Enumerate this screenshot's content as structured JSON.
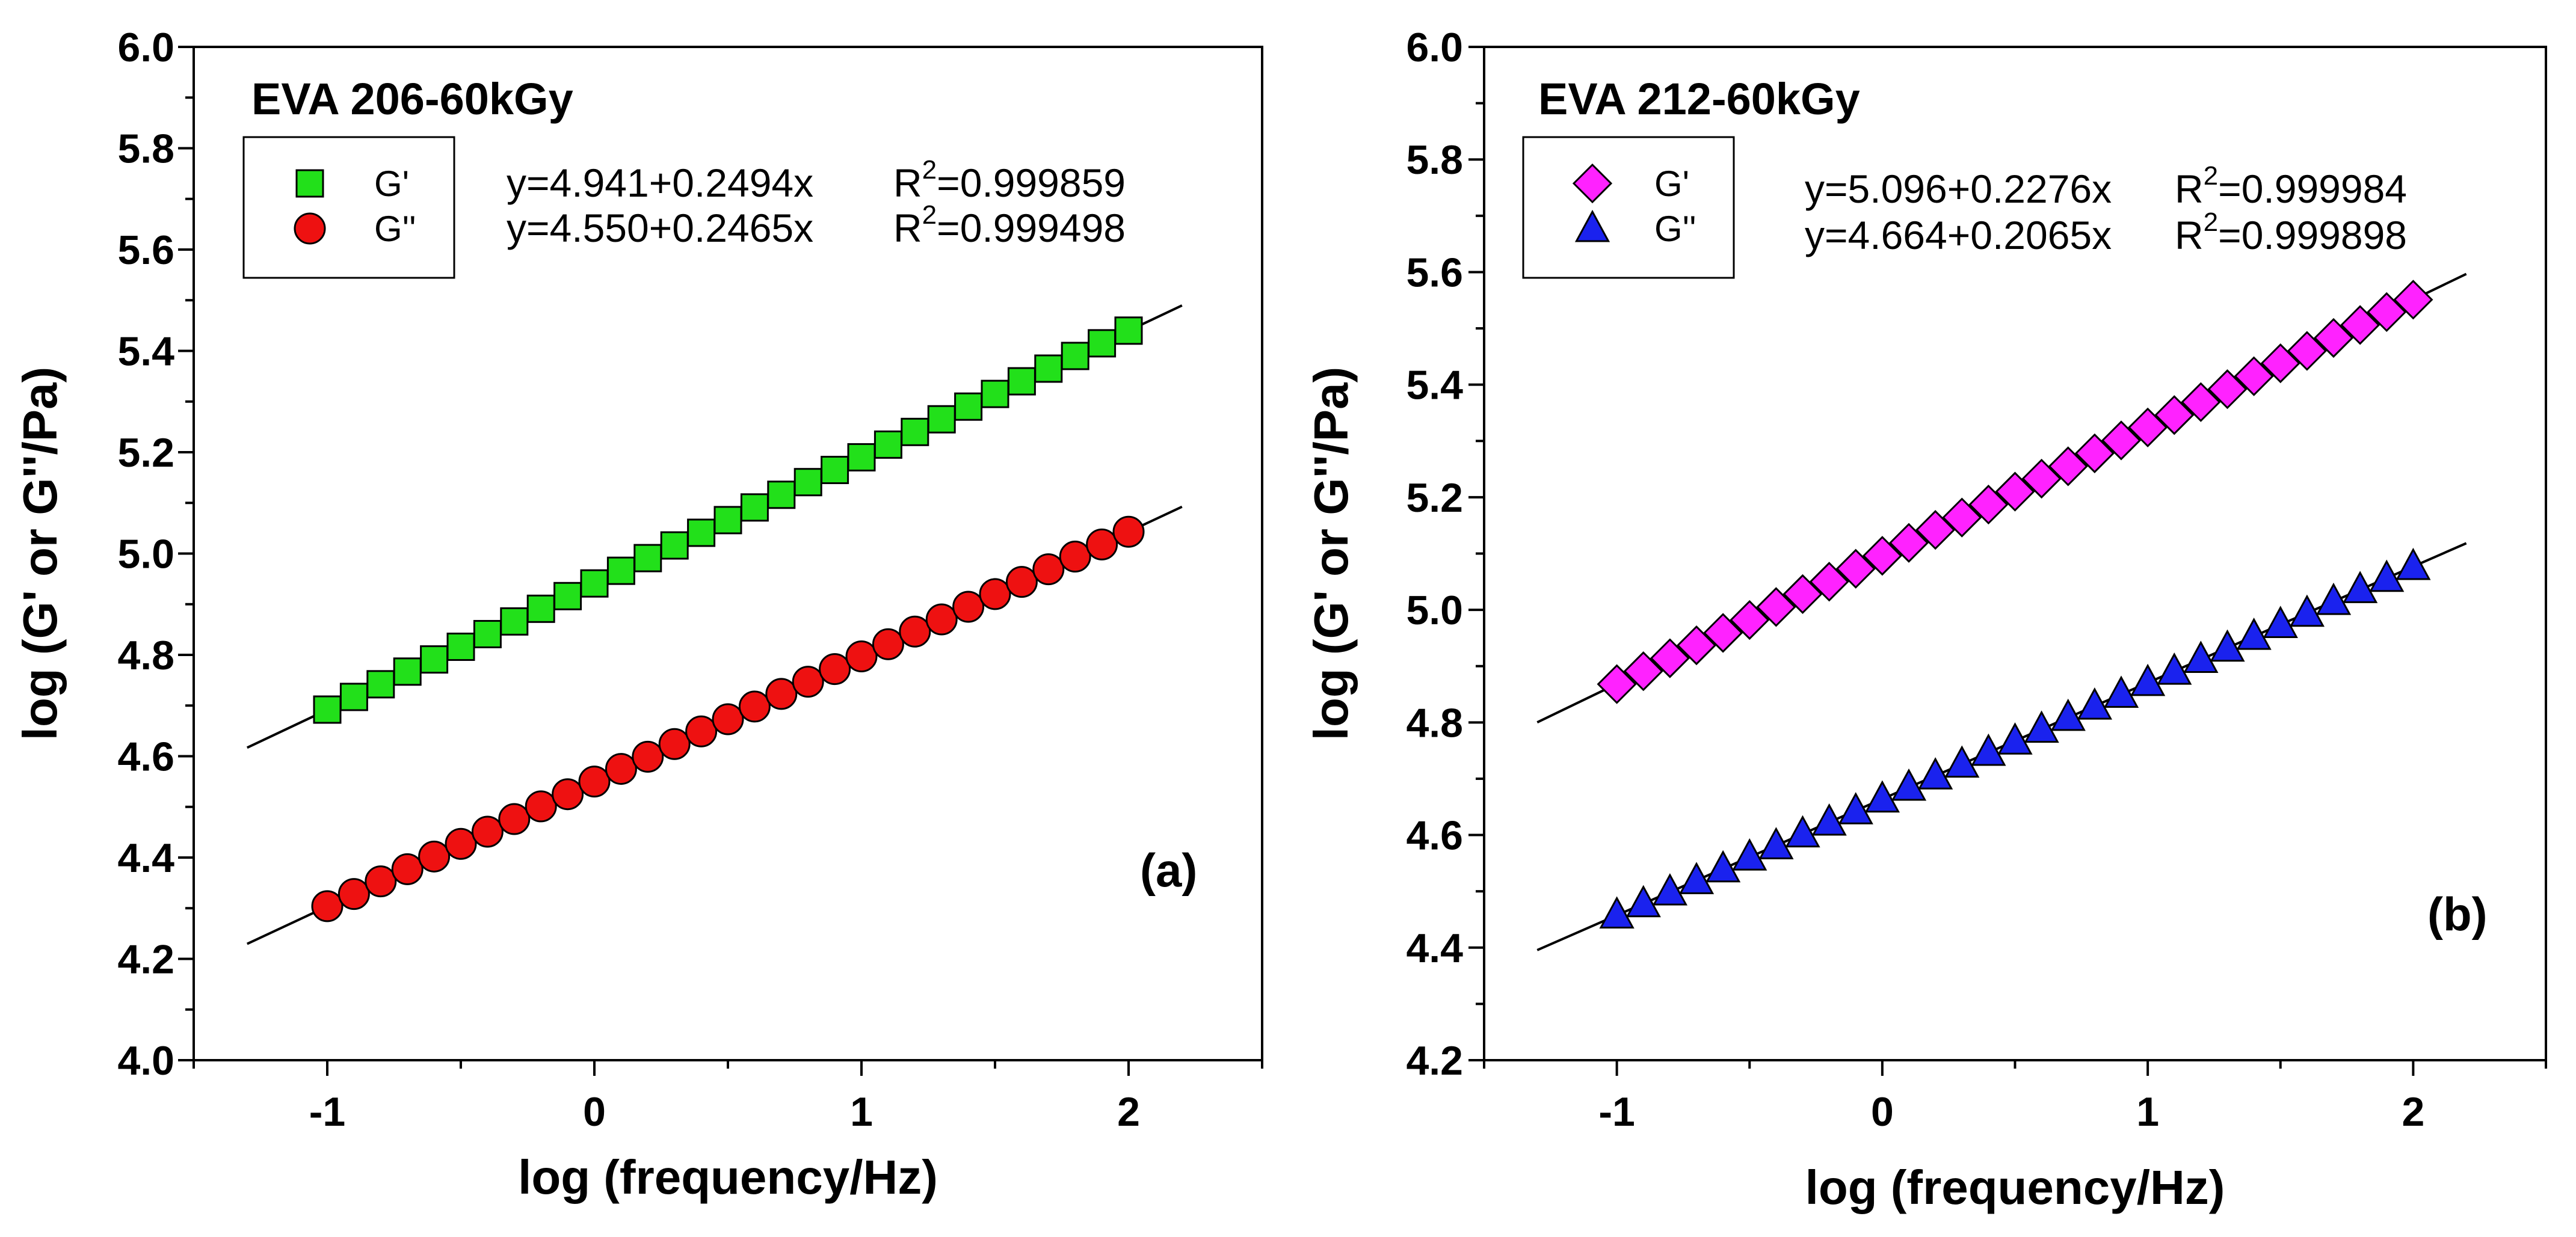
{
  "chart_data": [
    {
      "type": "scatter",
      "title": "EVA 206-60kGy",
      "panel_label": "(a)",
      "xlabel": "log (frequency/Hz)",
      "ylabel": "log (G' or G''/Pa)",
      "xlim": [
        -1.5,
        2.5
      ],
      "ylim": [
        4.0,
        6.0
      ],
      "xticks": [
        -1,
        0,
        1,
        2
      ],
      "xtick_labels": [
        "-1",
        "0",
        "1",
        "2"
      ],
      "yticks": [
        4.0,
        4.2,
        4.4,
        4.6,
        4.8,
        5.0,
        5.2,
        5.4,
        5.6,
        5.8,
        6.0
      ],
      "ytick_labels": [
        "4.0",
        "4.2",
        "4.4",
        "4.6",
        "4.8",
        "5.0",
        "5.2",
        "5.4",
        "5.6",
        "5.8",
        "6.0"
      ],
      "grid": false,
      "legend_position": "top-left",
      "x": [
        -1.0,
        -0.9,
        -0.8,
        -0.7,
        -0.6,
        -0.5,
        -0.4,
        -0.3,
        -0.2,
        -0.1,
        0.0,
        0.1,
        0.2,
        0.3,
        0.4,
        0.5,
        0.6,
        0.7,
        0.8,
        0.9,
        1.0,
        1.1,
        1.2,
        1.3,
        1.4,
        1.5,
        1.6,
        1.7,
        1.8,
        1.9,
        2.0
      ],
      "series": [
        {
          "name": "G'",
          "marker": "square",
          "color": "#22e01a",
          "values": [
            4.692,
            4.717,
            4.742,
            4.767,
            4.791,
            4.816,
            4.841,
            4.866,
            4.891,
            4.916,
            4.941,
            4.966,
            4.991,
            5.016,
            5.041,
            5.066,
            5.091,
            5.116,
            5.141,
            5.165,
            5.19,
            5.215,
            5.24,
            5.265,
            5.29,
            5.315,
            5.34,
            5.365,
            5.39,
            5.415,
            5.44
          ],
          "fit": {
            "intercept": 4.941,
            "slope": 0.2494,
            "x_range": [
              -1.3,
              2.2
            ]
          },
          "fit_label": "y=4.941+0.2494x",
          "r2_label": "0.999859"
        },
        {
          "name": "G''",
          "marker": "circle",
          "color": "#ee1111",
          "values": [
            4.304,
            4.328,
            4.353,
            4.377,
            4.402,
            4.427,
            4.451,
            4.476,
            4.501,
            4.525,
            4.55,
            4.575,
            4.599,
            4.624,
            4.649,
            4.673,
            4.698,
            4.723,
            4.747,
            4.772,
            4.797,
            4.821,
            4.846,
            4.87,
            4.895,
            4.92,
            4.944,
            4.969,
            4.994,
            5.018,
            5.043
          ],
          "fit": {
            "intercept": 4.55,
            "slope": 0.2465,
            "x_range": [
              -1.3,
              2.2
            ]
          },
          "fit_label": "y=4.550+0.2465x",
          "r2_label": "0.999498"
        }
      ]
    },
    {
      "type": "scatter",
      "title": "EVA 212-60kGy",
      "panel_label": "(b)",
      "xlabel": "log (frequency/Hz)",
      "ylabel": "log (G' or G''/Pa)",
      "xlim": [
        -1.5,
        2.5
      ],
      "ylim": [
        4.2,
        6.0
      ],
      "xticks": [
        -1,
        0,
        1,
        2
      ],
      "xtick_labels": [
        "-1",
        "0",
        "1",
        "2"
      ],
      "yticks": [
        4.2,
        4.4,
        4.6,
        4.8,
        5.0,
        5.2,
        5.4,
        5.6,
        5.8,
        6.0
      ],
      "ytick_labels": [
        "4.2",
        "4.4",
        "4.6",
        "4.8",
        "5.0",
        "5.2",
        "5.4",
        "5.6",
        "5.8",
        "6.0"
      ],
      "grid": false,
      "legend_position": "top-left",
      "x": [
        -1.0,
        -0.9,
        -0.8,
        -0.7,
        -0.6,
        -0.5,
        -0.4,
        -0.3,
        -0.2,
        -0.1,
        0.0,
        0.1,
        0.2,
        0.3,
        0.4,
        0.5,
        0.6,
        0.7,
        0.8,
        0.9,
        1.0,
        1.1,
        1.2,
        1.3,
        1.4,
        1.5,
        1.6,
        1.7,
        1.8,
        1.9,
        2.0
      ],
      "series": [
        {
          "name": "G'",
          "marker": "diamond",
          "color": "#ff22ff",
          "values": [
            4.868,
            4.891,
            4.914,
            4.937,
            4.959,
            4.982,
            5.005,
            5.028,
            5.05,
            5.073,
            5.096,
            5.119,
            5.142,
            5.164,
            5.187,
            5.21,
            5.233,
            5.255,
            5.278,
            5.301,
            5.324,
            5.346,
            5.369,
            5.392,
            5.415,
            5.438,
            5.46,
            5.483,
            5.506,
            5.529,
            5.551
          ],
          "fit": {
            "intercept": 5.096,
            "slope": 0.2276,
            "x_range": [
              -1.3,
              2.2
            ]
          },
          "fit_label": "y=5.096+0.2276x",
          "r2_label": "0.999984"
        },
        {
          "name": "G''",
          "marker": "triangle",
          "color": "#1a22ee",
          "values": [
            4.458,
            4.478,
            4.499,
            4.519,
            4.54,
            4.561,
            4.581,
            4.602,
            4.623,
            4.643,
            4.664,
            4.685,
            4.705,
            4.726,
            4.747,
            4.767,
            4.788,
            4.809,
            4.829,
            4.85,
            4.871,
            4.891,
            4.912,
            4.932,
            4.953,
            4.974,
            4.994,
            5.015,
            5.036,
            5.056,
            5.077
          ],
          "fit": {
            "intercept": 4.664,
            "slope": 0.2065,
            "x_range": [
              -1.3,
              2.2
            ]
          },
          "fit_label": "y=4.664+0.2065x",
          "r2_label": "0.999898"
        }
      ]
    }
  ]
}
